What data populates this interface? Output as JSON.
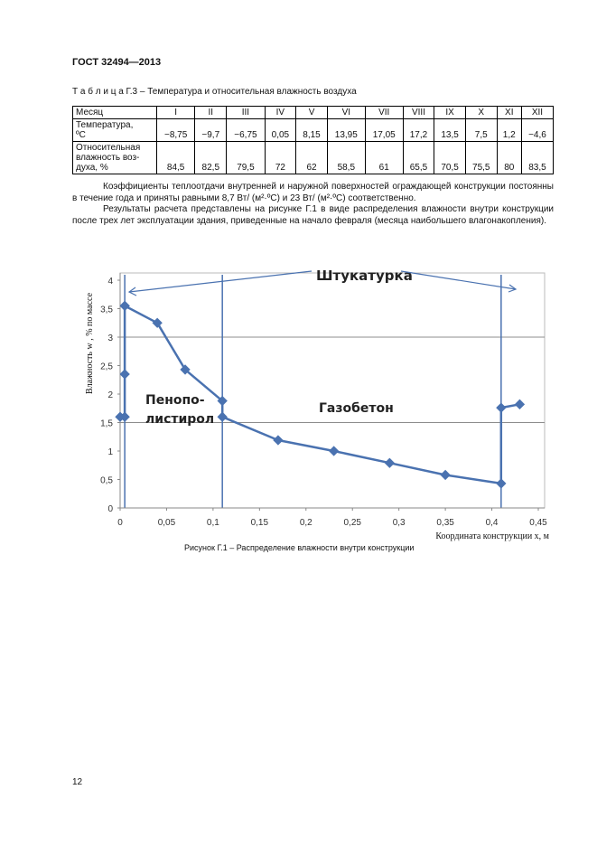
{
  "header": {
    "doc_id": "ГОСТ 32494—2013"
  },
  "table": {
    "caption": "Т а б л и ц а Г.3 – Температура и относительная влажность воздуха",
    "month_label": "Месяц",
    "months": [
      "I",
      "II",
      "III",
      "IV",
      "V",
      "VI",
      "VII",
      "VIII",
      "IX",
      "X",
      "XI",
      "XII"
    ],
    "temp_label_line1": "Температура,",
    "temp_label_line2": "ºС",
    "temps": [
      "−8,75",
      "−9,7",
      "−6,75",
      "0,05",
      "8,15",
      "13,95",
      "17,05",
      "17,2",
      "13,5",
      "7,5",
      "1,2",
      "−4,6"
    ],
    "hum_label_line1": "Относительная",
    "hum_label_line2": "влажность воз-",
    "hum_label_line3": "духа, %",
    "humidity": [
      "84,5",
      "82,5",
      "79,5",
      "72",
      "62",
      "58,5",
      "61",
      "65,5",
      "70,5",
      "75,5",
      "80",
      "83,5"
    ]
  },
  "paragraphs": {
    "p1": "Коэффициенты теплоотдачи внутренней и наружной поверхностей ограждающей конструкции постоянны в течение года и приняты равными 8,7 Вт/ (м²·ºС) и 23 Вт/ (м²·ºС) соответственно.",
    "p2": "Результаты расчета представлены на рисунке Г.1 в виде распределения влажности внутри конструкции после трех лет эксплуатации здания, приведенные на начало февраля (месяца наибольшего влагонакопления)."
  },
  "figure": {
    "caption": "Рисунок Г.1 – Распределение влажности внутри конструкции"
  },
  "chart_data": {
    "type": "line",
    "xlabel": "Координата конструкции x, м",
    "ylabel": "Влажность w , % по массе",
    "xlim": [
      0,
      0.45
    ],
    "ylim": [
      0,
      4
    ],
    "x_ticks": [
      "0",
      "0,05",
      "0,1",
      "0,15",
      "0,2",
      "0,25",
      "0,3",
      "0,35",
      "0,4",
      "0,45"
    ],
    "x_tick_values": [
      0,
      0.05,
      0.1,
      0.15,
      0.2,
      0.25,
      0.3,
      0.35,
      0.4,
      0.45
    ],
    "y_ticks": [
      "0",
      "0,5",
      "1",
      "1,5",
      "2",
      "2,5",
      "3",
      "3,5",
      "4"
    ],
    "y_tick_values": [
      0,
      0.5,
      1,
      1.5,
      2,
      2.5,
      3,
      3.5,
      4
    ],
    "grid": {
      "major_y": [
        1.5,
        3
      ]
    },
    "layer_boundaries": [
      0.005,
      0.11,
      0.41
    ],
    "annotations": {
      "plaster": "Штукатурка",
      "foam_line1": "Пенопо-",
      "foam_line2": "листирол",
      "gas_concrete": "Газобетон"
    },
    "series": [
      {
        "x": [
          0,
          0.005,
          0.005,
          0.005,
          0.005,
          0.04,
          0.07,
          0.11,
          0.11,
          0.17,
          0.23,
          0.29,
          0.35,
          0.41,
          0.41,
          0.43
        ],
        "y": [
          1.6,
          1.6,
          3.55,
          2.35,
          3.55,
          3.25,
          2.43,
          1.88,
          1.6,
          1.19,
          1.0,
          0.79,
          0.58,
          0.43,
          1.76,
          1.82
        ]
      }
    ],
    "colors": {
      "line": "#4a72b0",
      "marker": "#4a72b0",
      "axis": "#888888",
      "grid": "#8c8c8c"
    }
  }
}
